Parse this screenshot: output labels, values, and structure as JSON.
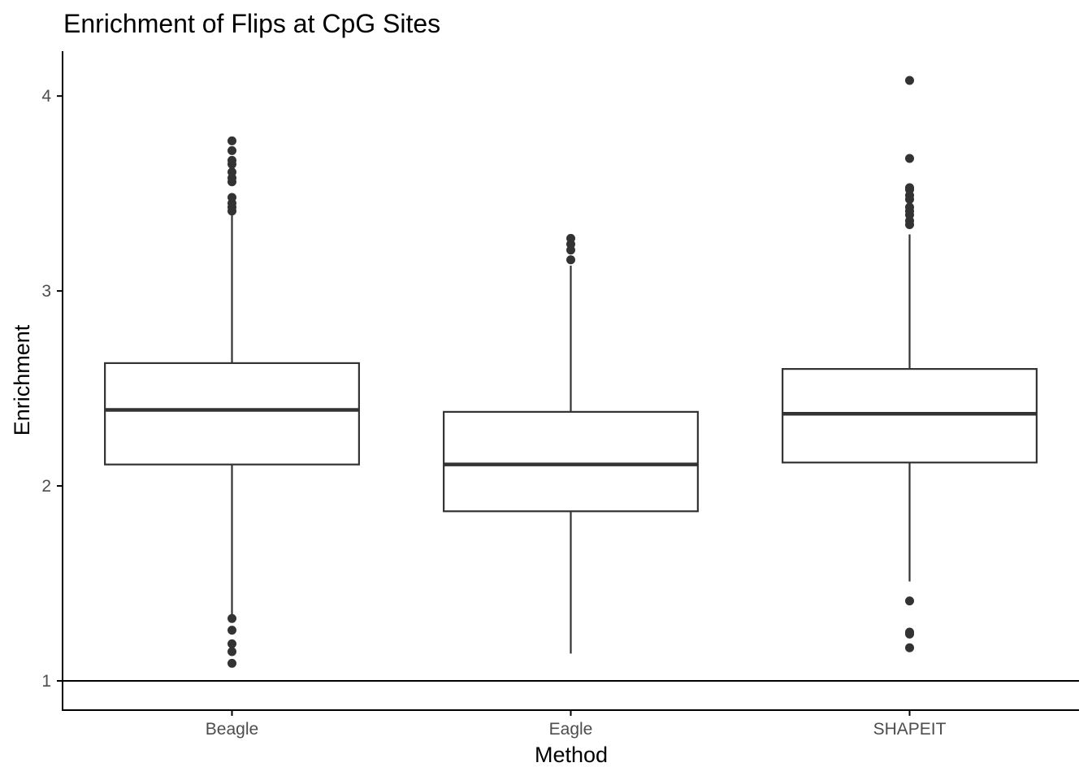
{
  "chart_data": {
    "type": "boxplot",
    "title": "Enrichment of Flips at CpG Sites",
    "xlabel": "Method",
    "ylabel": "Enrichment",
    "categories": [
      "Beagle",
      "Eagle",
      "SHAPEIT"
    ],
    "ylim": [
      0.85,
      4.23
    ],
    "yticks": [
      1,
      2,
      3,
      4
    ],
    "yticklabels": [
      "1",
      "2",
      "3",
      "4"
    ],
    "reference_line": 1,
    "grid": false,
    "boxes": [
      {
        "category": "Beagle",
        "whisker_low": 1.34,
        "q1": 2.11,
        "median": 2.39,
        "q3": 2.63,
        "whisker_high": 3.39,
        "outliers": [
          1.09,
          1.15,
          1.19,
          1.26,
          1.32,
          3.41,
          3.43,
          3.45,
          3.48,
          3.56,
          3.58,
          3.61,
          3.65,
          3.67,
          3.72,
          3.77
        ]
      },
      {
        "category": "Eagle",
        "whisker_low": 1.14,
        "q1": 1.87,
        "median": 2.11,
        "q3": 2.38,
        "whisker_high": 3.13,
        "outliers": [
          3.16,
          3.21,
          3.24,
          3.27
        ]
      },
      {
        "category": "SHAPEIT",
        "whisker_low": 1.51,
        "q1": 2.12,
        "median": 2.37,
        "q3": 2.6,
        "whisker_high": 3.29,
        "outliers": [
          1.17,
          1.24,
          1.25,
          1.41,
          3.34,
          3.36,
          3.39,
          3.41,
          3.43,
          3.47,
          3.49,
          3.52,
          3.53,
          3.68,
          4.08
        ]
      }
    ],
    "colors": {
      "box_line": "#333333",
      "outlier": "#333333",
      "axis": "#000000",
      "background": "#ffffff"
    }
  }
}
